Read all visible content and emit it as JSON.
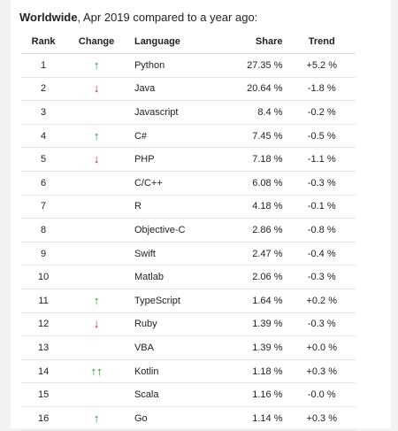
{
  "heading": {
    "bold": "Worldwide",
    "rest": ", Apr 2019 compared to a year ago:"
  },
  "columns": {
    "rank": "Rank",
    "change": "Change",
    "language": "Language",
    "share": "Share",
    "trend": "Trend"
  },
  "colors": {
    "up_arrow": "#1a9a2a",
    "down_arrow": "#cc1a1a"
  },
  "rows": [
    {
      "rank": "1",
      "change": "↑",
      "change_icon": "arrow-up-icon",
      "language": "Python",
      "share": "27.35 %",
      "trend": "+5.2 %"
    },
    {
      "rank": "2",
      "change": "↓",
      "change_icon": "arrow-down-icon",
      "language": "Java",
      "share": "20.64 %",
      "trend": "-1.8 %"
    },
    {
      "rank": "3",
      "change": "",
      "change_icon": "",
      "language": "Javascript",
      "share": "8.4 %",
      "trend": "-0.2 %"
    },
    {
      "rank": "4",
      "change": "↑",
      "change_icon": "arrow-up-icon",
      "language": "C#",
      "share": "7.45 %",
      "trend": "-0.5 %"
    },
    {
      "rank": "5",
      "change": "↓",
      "change_icon": "arrow-down-icon",
      "language": "PHP",
      "share": "7.18 %",
      "trend": "-1.1 %"
    },
    {
      "rank": "6",
      "change": "",
      "change_icon": "",
      "language": "C/C++",
      "share": "6.08 %",
      "trend": "-0.3 %"
    },
    {
      "rank": "7",
      "change": "",
      "change_icon": "",
      "language": "R",
      "share": "4.18 %",
      "trend": "-0.1 %"
    },
    {
      "rank": "8",
      "change": "",
      "change_icon": "",
      "language": "Objective-C",
      "share": "2.86 %",
      "trend": "-0.8 %"
    },
    {
      "rank": "9",
      "change": "",
      "change_icon": "",
      "language": "Swift",
      "share": "2.47 %",
      "trend": "-0.4 %"
    },
    {
      "rank": "10",
      "change": "",
      "change_icon": "",
      "language": "Matlab",
      "share": "2.06 %",
      "trend": "-0.3 %"
    },
    {
      "rank": "11",
      "change": "↑",
      "change_icon": "arrow-up-icon",
      "language": "TypeScript",
      "share": "1.64 %",
      "trend": "+0.2 %"
    },
    {
      "rank": "12",
      "change": "↓",
      "change_icon": "arrow-down-icon",
      "language": "Ruby",
      "share": "1.39 %",
      "trend": "-0.3 %"
    },
    {
      "rank": "13",
      "change": "",
      "change_icon": "",
      "language": "VBA",
      "share": "1.39 %",
      "trend": "+0.0 %"
    },
    {
      "rank": "14",
      "change": "↑↑",
      "change_icon": "double-arrow-up-icon",
      "language": "Kotlin",
      "share": "1.18 %",
      "trend": "+0.3 %"
    },
    {
      "rank": "15",
      "change": "",
      "change_icon": "",
      "language": "Scala",
      "share": "1.16 %",
      "trend": "-0.0 %"
    },
    {
      "rank": "16",
      "change": "↑",
      "change_icon": "arrow-up-icon",
      "language": "Go",
      "share": "1.14 %",
      "trend": "+0.3 %"
    }
  ]
}
